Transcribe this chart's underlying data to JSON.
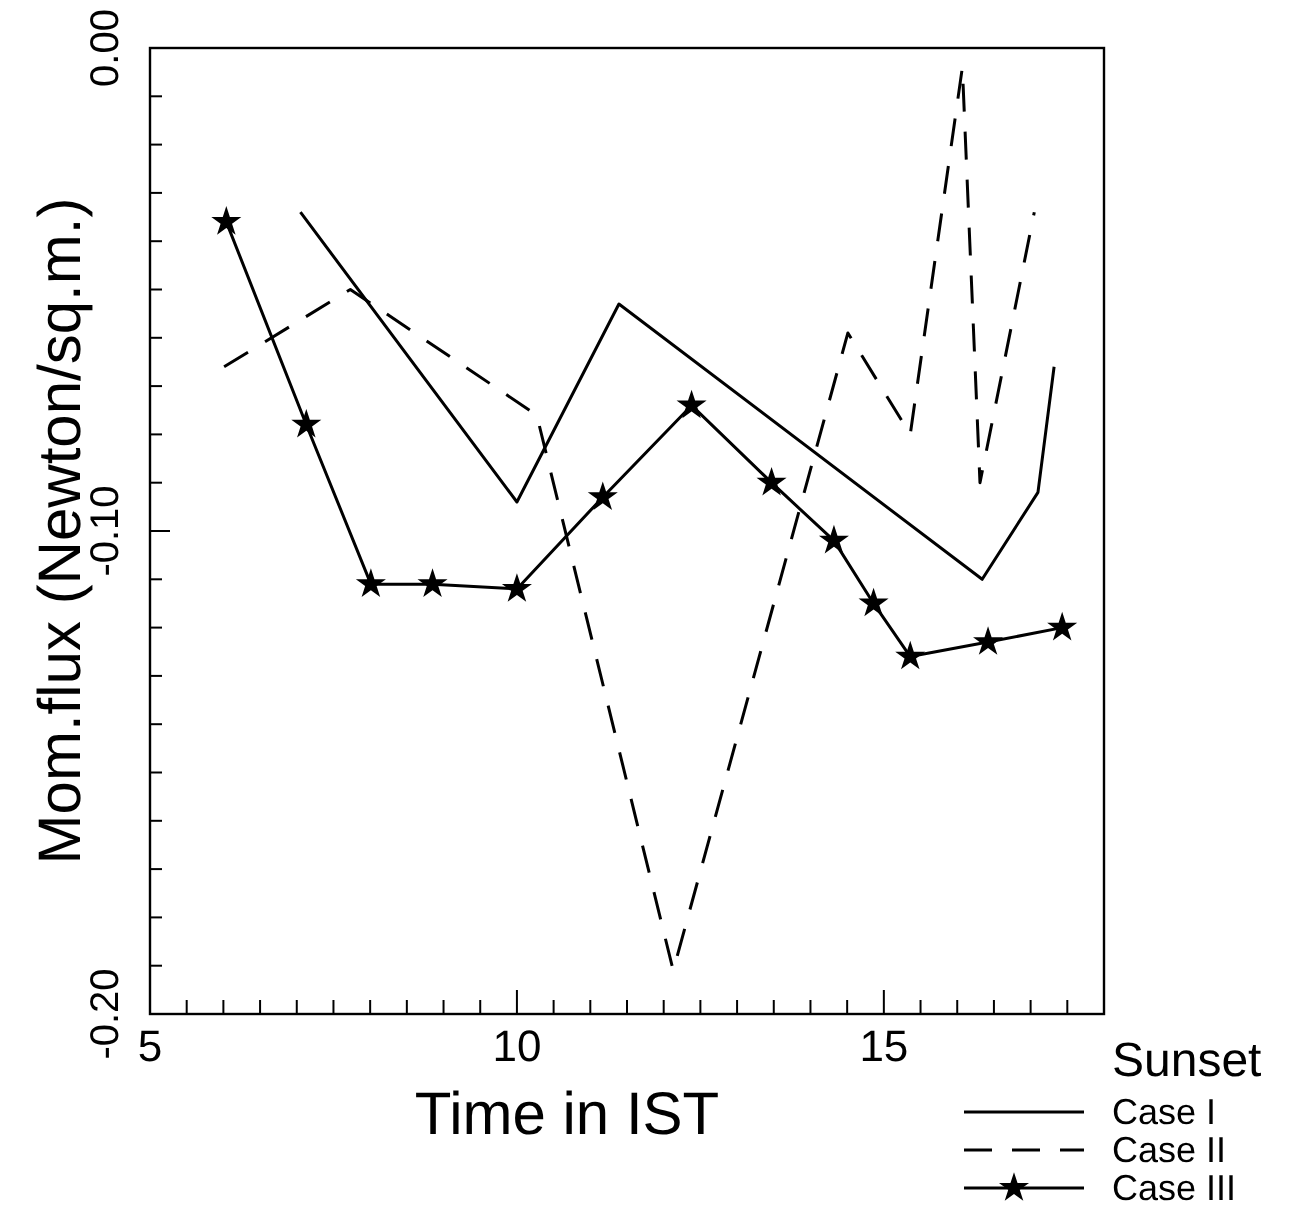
{
  "chart_data": {
    "type": "line",
    "xlabel": "Time in IST",
    "ylabel": "Mom.flux  (Newton/sq.m.)",
    "legend_title": "Sunset",
    "legend": "bottom right",
    "grid": false,
    "xlim": [
      5,
      18
    ],
    "ylim": [
      -0.2,
      0
    ],
    "xticks": [
      5,
      {
        "value": 5.5,
        "label": null
      },
      {
        "value": 6,
        "label": null
      },
      {
        "value": 6.5,
        "label": null
      },
      {
        "value": 7,
        "label": null
      },
      {
        "value": 7.5,
        "label": null
      },
      {
        "value": 8,
        "label": null
      },
      {
        "value": 8.5,
        "label": null
      },
      {
        "value": 9,
        "label": null
      },
      {
        "value": 9.5,
        "label": null
      },
      10,
      {
        "value": 10.5,
        "label": null
      },
      {
        "value": 11,
        "label": null
      },
      {
        "value": 11.5,
        "label": null
      },
      {
        "value": 12,
        "label": null
      },
      {
        "value": 12.5,
        "label": null
      },
      {
        "value": 13,
        "label": null
      },
      {
        "value": 13.5,
        "label": null
      },
      {
        "value": 14,
        "label": null
      },
      {
        "value": 14.5,
        "label": null
      },
      15,
      {
        "value": 15.5,
        "label": null
      },
      {
        "value": 16,
        "label": null
      },
      {
        "value": 16.5,
        "label": null
      },
      {
        "value": 17,
        "label": null
      },
      {
        "value": 17.5,
        "label": null
      },
      {
        "value": 18,
        "label": null
      }
    ],
    "yticks": [
      {
        "value": -0.2,
        "label": "-0.20"
      },
      {
        "value": -0.19,
        "label": null
      },
      {
        "value": -0.18,
        "label": null
      },
      {
        "value": -0.17,
        "label": null
      },
      {
        "value": -0.16,
        "label": null
      },
      {
        "value": -0.15,
        "label": null
      },
      {
        "value": -0.14,
        "label": null
      },
      {
        "value": -0.13,
        "label": null
      },
      {
        "value": -0.12,
        "label": null
      },
      {
        "value": -0.11,
        "label": null
      },
      {
        "value": -0.1,
        "label": "-0.10"
      },
      {
        "value": -0.09,
        "label": null
      },
      {
        "value": -0.08,
        "label": null
      },
      {
        "value": -0.07,
        "label": null
      },
      {
        "value": -0.06,
        "label": null
      },
      {
        "value": -0.05,
        "label": null
      },
      {
        "value": -0.04,
        "label": null
      },
      {
        "value": -0.03,
        "label": null
      },
      {
        "value": -0.02,
        "label": null
      },
      {
        "value": -0.01,
        "label": null
      },
      {
        "value": 0,
        "label": "0.00"
      }
    ],
    "series": [
      {
        "name": "Case I",
        "color": "#000000",
        "line_style": "solid",
        "marker": "none",
        "x": [
          7.05,
          10.0,
          11.39,
          16.34,
          17.1,
          17.32
        ],
        "values": [
          -0.034,
          -0.094,
          -0.053,
          -0.11,
          -0.092,
          -0.066
        ]
      },
      {
        "name": "Case II",
        "color": "#000000",
        "line_style": "dashed",
        "marker": "none",
        "x": [
          6.01,
          7.73,
          10.27,
          12.13,
          14.51,
          15.36,
          16.07,
          16.31,
          17.05
        ],
        "values": [
          -0.066,
          -0.05,
          -0.076,
          -0.191,
          -0.059,
          -0.08,
          -0.004,
          -0.09,
          -0.034
        ]
      },
      {
        "name": "Case III",
        "color": "#000000",
        "line_style": "solid",
        "marker": "star",
        "x": [
          6.04,
          7.13,
          8.01,
          8.85,
          10.0,
          11.17,
          12.38,
          13.47,
          14.32,
          14.86,
          15.36,
          16.42,
          17.43
        ],
        "values": [
          -0.036,
          -0.078,
          -0.111,
          -0.111,
          -0.112,
          -0.093,
          -0.074,
          -0.09,
          -0.102,
          -0.115,
          -0.126,
          -0.123,
          -0.12
        ]
      }
    ]
  }
}
